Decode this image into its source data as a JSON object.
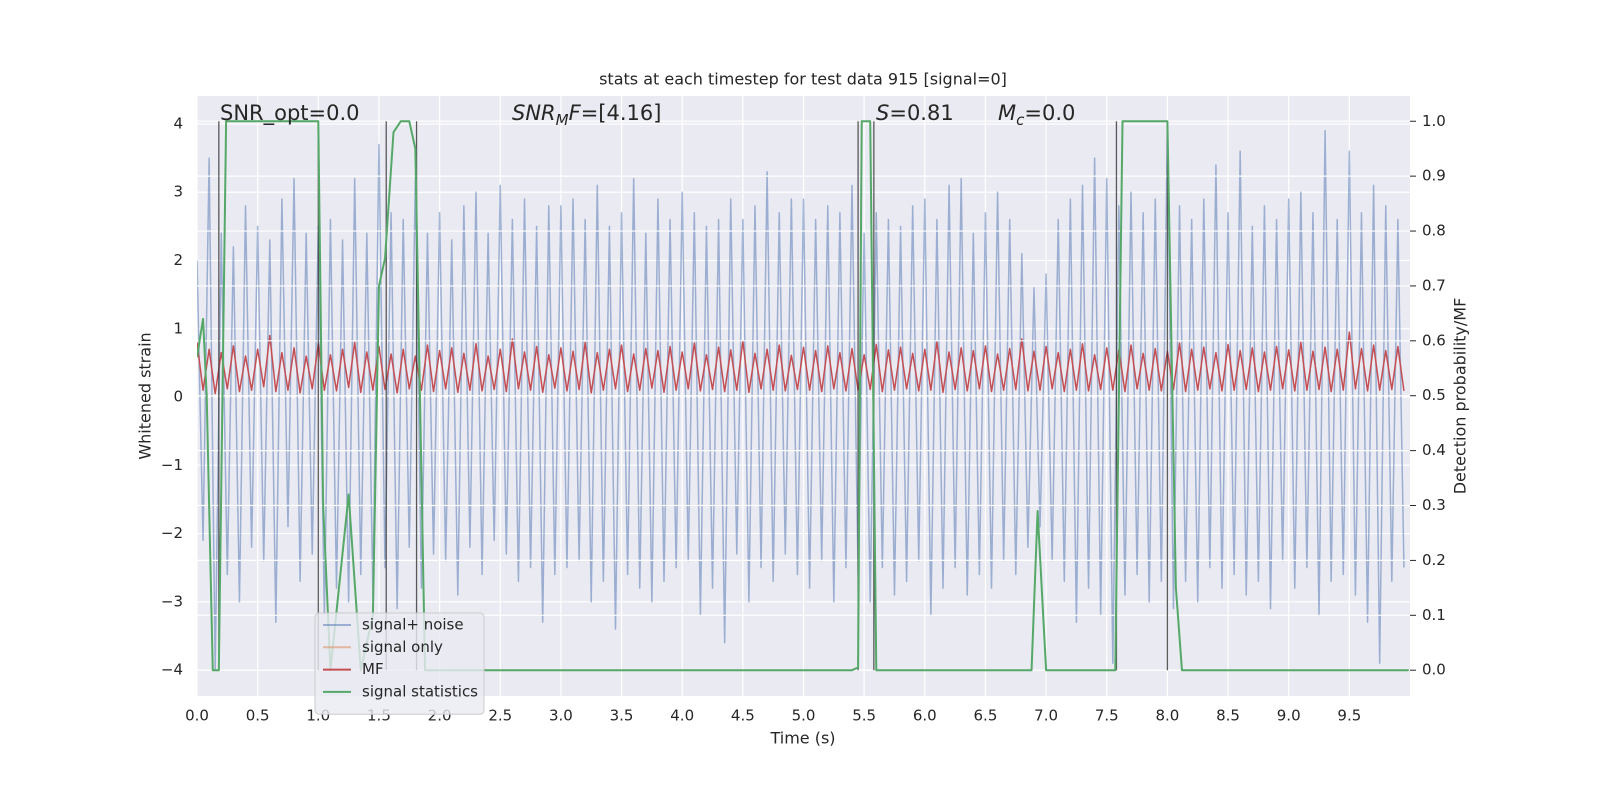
{
  "chart_data": {
    "type": "line",
    "title": "stats at each timestep for test data 915 [signal=0]",
    "xlabel": "Time (s)",
    "ylabel": "Whitened strain",
    "y2label": "Detection probability/MF",
    "xlim": [
      0,
      10
    ],
    "ylim": [
      -4.38,
      4.41
    ],
    "y2lim": [
      -0.047,
      1.046
    ],
    "xticks": [
      {
        "value": 0,
        "label": "0.0"
      },
      {
        "value": 0.5,
        "label": "0.5"
      },
      {
        "value": 1,
        "label": "1.0"
      },
      {
        "value": 1.5,
        "label": "1.5"
      },
      {
        "value": 2,
        "label": "2.0"
      },
      {
        "value": 2.5,
        "label": "2.5"
      },
      {
        "value": 3,
        "label": "3.0"
      },
      {
        "value": 3.5,
        "label": "3.5"
      },
      {
        "value": 4,
        "label": "4.0"
      },
      {
        "value": 4.5,
        "label": "4.5"
      },
      {
        "value": 5,
        "label": "5.0"
      },
      {
        "value": 5.5,
        "label": "5.5"
      },
      {
        "value": 6,
        "label": "6.0"
      },
      {
        "value": 6.5,
        "label": "6.5"
      },
      {
        "value": 7,
        "label": "7.0"
      },
      {
        "value": 7.5,
        "label": "7.5"
      },
      {
        "value": 8,
        "label": "8.0"
      },
      {
        "value": 8.5,
        "label": "8.5"
      },
      {
        "value": 9,
        "label": "9.0"
      },
      {
        "value": 9.5,
        "label": "9.5"
      }
    ],
    "yticks": [
      {
        "value": -4,
        "label": "−4"
      },
      {
        "value": -3,
        "label": "−3"
      },
      {
        "value": -2,
        "label": "−2"
      },
      {
        "value": -1,
        "label": "−1"
      },
      0,
      1,
      2,
      3,
      4
    ],
    "y2ticks": [
      {
        "value": 0,
        "label": "0.0"
      },
      {
        "value": 0.1,
        "label": "0.1"
      },
      {
        "value": 0.2,
        "label": "0.2"
      },
      {
        "value": 0.3,
        "label": "0.3"
      },
      {
        "value": 0.4,
        "label": "0.4"
      },
      {
        "value": 0.5,
        "label": "0.5"
      },
      {
        "value": 0.6,
        "label": "0.6"
      },
      {
        "value": 0.7,
        "label": "0.7"
      },
      {
        "value": 0.8,
        "label": "0.8"
      },
      {
        "value": 0.9,
        "label": "0.9"
      },
      {
        "value": 1,
        "label": "1.0"
      }
    ],
    "grid": true,
    "legend": "best",
    "annotations": [
      [
        {
          "text": "SNR_opt=0.0",
          "style": "normal"
        }
      ],
      [
        {
          "text": "SNR",
          "style": "italic"
        },
        {
          "text": "M",
          "style": "sub"
        },
        {
          "text": "F",
          "style": "italic"
        },
        {
          "text": "=[4.16]",
          "style": "normal"
        }
      ],
      [
        {
          "text": "S",
          "style": "italic"
        },
        {
          "text": "=0.81",
          "style": "normal"
        }
      ],
      [
        {
          "text": "M",
          "style": "italic"
        },
        {
          "text": "c",
          "style": "sub"
        },
        {
          "text": "=0.0",
          "style": "normal"
        }
      ]
    ],
    "vlines": {
      "x": [
        0.18,
        1.0,
        1.56,
        1.81,
        5.45,
        5.58,
        7.58,
        8.0
      ],
      "ymin": 0,
      "ymax": 1,
      "axis": "y2",
      "color": "#333333"
    },
    "x": [
      0,
      0.05,
      0.1,
      0.15,
      0.2,
      0.25,
      0.3,
      0.35,
      0.4,
      0.45,
      0.5,
      0.55,
      0.6,
      0.65,
      0.7,
      0.75,
      0.8,
      0.85,
      0.9,
      0.95,
      1,
      1.05,
      1.1,
      1.15,
      1.2,
      1.25,
      1.3,
      1.35,
      1.4,
      1.45,
      1.5,
      1.55,
      1.6,
      1.65,
      1.7,
      1.75,
      1.8,
      1.85,
      1.9,
      1.95,
      2,
      2.05,
      2.1,
      2.15,
      2.2,
      2.25,
      2.3,
      2.35,
      2.4,
      2.45,
      2.5,
      2.55,
      2.6,
      2.65,
      2.7,
      2.75,
      2.8,
      2.85,
      2.9,
      2.95,
      3,
      3.05,
      3.1,
      3.15,
      3.2,
      3.25,
      3.3,
      3.35,
      3.4,
      3.45,
      3.5,
      3.55,
      3.6,
      3.65,
      3.7,
      3.75,
      3.8,
      3.85,
      3.9,
      3.95,
      4,
      4.05,
      4.1,
      4.15,
      4.2,
      4.25,
      4.3,
      4.35,
      4.4,
      4.45,
      4.5,
      4.55,
      4.6,
      4.65,
      4.7,
      4.75,
      4.8,
      4.85,
      4.9,
      4.95,
      5,
      5.05,
      5.1,
      5.15,
      5.2,
      5.25,
      5.3,
      5.35,
      5.4,
      5.45,
      5.5,
      5.55,
      5.6,
      5.65,
      5.7,
      5.75,
      5.8,
      5.85,
      5.9,
      5.95,
      6,
      6.05,
      6.1,
      6.15,
      6.2,
      6.25,
      6.3,
      6.35,
      6.4,
      6.45,
      6.5,
      6.55,
      6.6,
      6.65,
      6.7,
      6.75,
      6.8,
      6.85,
      6.9,
      6.95,
      7,
      7.05,
      7.1,
      7.15,
      7.2,
      7.25,
      7.3,
      7.35,
      7.4,
      7.45,
      7.5,
      7.55,
      7.6,
      7.65,
      7.7,
      7.75,
      7.8,
      7.85,
      7.9,
      7.95,
      8,
      8.05,
      8.1,
      8.15,
      8.2,
      8.25,
      8.3,
      8.35,
      8.4,
      8.45,
      8.5,
      8.55,
      8.6,
      8.65,
      8.7,
      8.75,
      8.8,
      8.85,
      8.9,
      8.95,
      9,
      9.05,
      9.1,
      9.15,
      9.2,
      9.25,
      9.3,
      9.35,
      9.4,
      9.45,
      9.5,
      9.55,
      9.6,
      9.65,
      9.7,
      9.75,
      9.8,
      9.85,
      9.9,
      9.95
    ],
    "series": [
      {
        "name": "signal+ noise",
        "color": "#4c72b0",
        "alpha": 0.5,
        "values": [
          2.0,
          -2.1,
          3.5,
          -4.0,
          2.4,
          -2.6,
          2.2,
          -3.0,
          2.8,
          -2.2,
          2.5,
          -2.4,
          2.3,
          -3.3,
          2.9,
          -1.9,
          3.2,
          -2.7,
          2.4,
          -2.3,
          2.5,
          -3.2,
          2.6,
          -2.8,
          2.3,
          -3.0,
          3.2,
          -2.6,
          2.4,
          -2.9,
          3.7,
          -2.5,
          2.7,
          -3.1,
          2.6,
          -2.2,
          3.2,
          -2.8,
          2.4,
          -2.3,
          2.7,
          -2.4,
          2.3,
          -2.9,
          2.8,
          -2.2,
          3.0,
          -2.6,
          2.4,
          -2.1,
          3.1,
          -2.3,
          2.6,
          -2.7,
          2.9,
          -2.5,
          2.5,
          -3.3,
          2.8,
          -2.6,
          2.8,
          -2.5,
          2.9,
          -2.4,
          2.6,
          -3.0,
          3.1,
          -2.7,
          2.5,
          -3.4,
          2.7,
          -2.6,
          3.2,
          -2.8,
          2.4,
          -3.0,
          2.9,
          -2.7,
          2.6,
          -2.5,
          3.0,
          -2.4,
          2.7,
          -3.2,
          2.5,
          -2.8,
          2.6,
          -3.6,
          2.9,
          -2.3,
          2.6,
          -3.0,
          2.8,
          -2.5,
          3.3,
          -2.7,
          2.7,
          -2.3,
          2.9,
          -2.6,
          2.9,
          -2.8,
          2.6,
          -2.4,
          2.8,
          -3.0,
          2.7,
          -2.5,
          3.1,
          -2.6,
          2.4,
          -3.0,
          2.7,
          -2.5,
          2.6,
          -2.9,
          2.5,
          -2.7,
          2.8,
          -2.4,
          2.9,
          -3.2,
          2.6,
          -2.8,
          3.1,
          -2.5,
          3.2,
          -2.9,
          2.4,
          -2.6,
          2.7,
          -2.8,
          3.0,
          -2.4,
          2.6,
          -2.6,
          2.1,
          -2.2,
          1.6,
          -1.9,
          1.8,
          -2.4,
          2.6,
          -2.7,
          2.9,
          -3.3,
          3.1,
          -2.8,
          3.5,
          -3.2,
          3.2,
          -3.9,
          2.8,
          -2.9,
          3.0,
          -2.6,
          2.7,
          -3.0,
          2.9,
          -2.7,
          4.0,
          -3.1,
          2.8,
          -2.7,
          2.6,
          -3.0,
          2.9,
          -2.5,
          3.4,
          -2.8,
          2.7,
          -2.6,
          3.6,
          -2.9,
          2.5,
          -2.7,
          2.8,
          -3.1,
          2.6,
          -2.4,
          2.9,
          -2.8,
          3.0,
          -2.5,
          2.7,
          -3.2,
          3.9,
          -2.7,
          2.6,
          -2.6,
          3.6,
          -2.9,
          2.7,
          -3.3,
          3.1,
          -3.9,
          2.8,
          -2.7,
          2.6,
          -2.5
        ]
      },
      {
        "name": "signal only",
        "color": "#dd8452",
        "alpha": 0.5
      },
      {
        "name": "MF",
        "color": "#c44e52",
        "values": [
          0.8,
          0.1,
          0.7,
          0.05,
          0.65,
          0.12,
          0.75,
          0.08,
          0.6,
          0.1,
          0.7,
          0.15,
          0.9,
          0.08,
          0.65,
          0.1,
          0.72,
          0.06,
          0.6,
          0.12,
          0.78,
          0.1,
          0.62,
          0.09,
          0.7,
          0.14,
          0.8,
          0.07,
          0.66,
          0.1,
          0.74,
          0.11,
          0.63,
          0.06,
          0.7,
          0.12,
          0.6,
          0.1,
          0.76,
          0.08,
          0.68,
          0.12,
          0.72,
          0.07,
          0.64,
          0.1,
          0.78,
          0.09,
          0.6,
          0.11,
          0.7,
          0.08,
          0.85,
          0.12,
          0.66,
          0.1,
          0.74,
          0.07,
          0.62,
          0.13,
          0.72,
          0.09,
          0.67,
          0.11,
          0.8,
          0.06,
          0.65,
          0.1,
          0.7,
          0.12,
          0.76,
          0.08,
          0.63,
          0.1,
          0.71,
          0.13,
          0.68,
          0.07,
          0.74,
          0.1,
          0.66,
          0.12,
          0.79,
          0.09,
          0.62,
          0.11,
          0.73,
          0.08,
          0.69,
          0.1,
          0.82,
          0.07,
          0.64,
          0.12,
          0.7,
          0.1,
          0.76,
          0.09,
          0.61,
          0.11,
          0.73,
          0.1,
          0.68,
          0.08,
          0.75,
          0.12,
          0.65,
          0.09,
          0.71,
          0.1,
          0.62,
          0.11,
          0.77,
          0.08,
          0.69,
          0.1,
          0.73,
          0.12,
          0.64,
          0.09,
          0.7,
          0.1,
          0.81,
          0.07,
          0.66,
          0.11,
          0.72,
          0.09,
          0.68,
          0.12,
          0.75,
          0.08,
          0.63,
          0.1,
          0.71,
          0.11,
          0.85,
          0.09,
          0.67,
          0.1,
          0.74,
          0.12,
          0.65,
          0.08,
          0.7,
          0.1,
          0.78,
          0.09,
          0.62,
          0.11,
          0.72,
          0.1,
          0.69,
          0.08,
          0.76,
          0.12,
          0.64,
          0.1,
          0.71,
          0.09,
          0.67,
          0.11,
          0.79,
          0.08,
          0.7,
          0.1,
          0.73,
          0.12,
          0.65,
          0.09,
          0.77,
          0.1,
          0.68,
          0.11,
          0.72,
          0.08,
          0.66,
          0.1,
          0.74,
          0.12,
          0.69,
          0.09,
          0.8,
          0.1,
          0.67,
          0.11,
          0.73,
          0.08,
          0.7,
          0.1,
          0.95,
          0.12,
          0.71,
          0.09,
          0.76,
          0.1,
          0.68,
          0.11,
          0.74,
          0.09
        ]
      },
      {
        "name": "signal statistics",
        "color": "#55a868",
        "axis": "y2",
        "x": [
          0,
          0.05,
          0.08,
          0.13,
          0.18,
          0.24,
          1.0,
          1.04,
          1.1,
          1.25,
          1.35,
          1.45,
          1.5,
          1.55,
          1.62,
          1.68,
          1.75,
          1.8,
          1.88,
          5.4,
          5.45,
          5.48,
          5.55,
          5.6,
          6.88,
          6.93,
          7.0,
          7.57,
          7.63,
          8.0,
          8.07,
          8.12,
          9.99
        ],
        "values": [
          0.57,
          0.64,
          0.5,
          0.0,
          0.0,
          1.0,
          1.0,
          0.3,
          0.0,
          0.32,
          0.0,
          0.1,
          0.7,
          0.75,
          0.98,
          1.0,
          1.0,
          0.95,
          0.0,
          0.0,
          0.005,
          1.0,
          1.0,
          0.0,
          0.0,
          0.29,
          0.0,
          0.0,
          1.0,
          1.0,
          0.15,
          0.0,
          0.0
        ]
      }
    ]
  }
}
